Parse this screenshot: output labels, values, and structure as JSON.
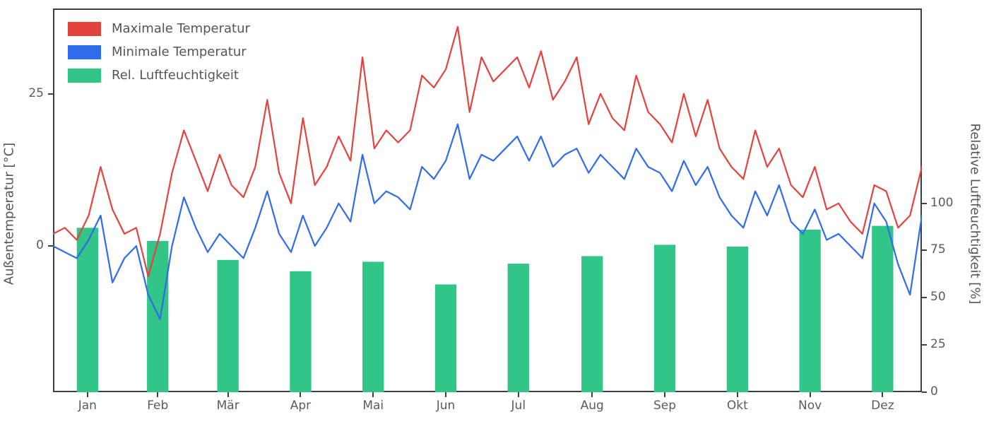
{
  "figure": {
    "background": "#ffffff",
    "spine_color": "#3c4043",
    "text_color": "#565d61"
  },
  "chart_data": {
    "type": "line+bar",
    "title": "",
    "x_tick_labels": [
      "Jan",
      "Feb",
      "Mär",
      "Apr",
      "Mai",
      "Jun",
      "Jul",
      "Aug",
      "Sep",
      "Okt",
      "Nov",
      "Dez"
    ],
    "month_mid_days": [
      15.5,
      45,
      74.5,
      105,
      135.5,
      166,
      196.5,
      227.5,
      258,
      288.5,
      319,
      349.5
    ],
    "x_range_days": [
      1,
      366
    ],
    "temp_axis": {
      "side": "left",
      "label": "Außentemperatur [°C]",
      "ticks": [
        0,
        25
      ],
      "ylim": [
        -24,
        39
      ]
    },
    "humidity_axis": {
      "side": "right",
      "label": "Relative Luftfeuchtigkeit [%]",
      "ticks": [
        0,
        25,
        50,
        75,
        100
      ],
      "ylim": [
        0,
        203
      ]
    },
    "series": [
      {
        "name": "Maximale Temperatur",
        "type": "line",
        "axis": "temp",
        "color": "#e4423d",
        "line_width": 2.2,
        "x_start_day": 1,
        "x_step_days": 5,
        "values": [
          2,
          3,
          1,
          5,
          13,
          6,
          2,
          3,
          -5,
          2,
          12,
          19,
          14,
          9,
          15,
          10,
          8,
          13,
          24,
          12,
          7,
          21,
          10,
          13,
          18,
          14,
          31,
          16,
          19,
          17,
          19,
          28,
          26,
          29,
          36,
          22,
          31,
          27,
          29,
          31,
          26,
          32,
          24,
          27,
          31,
          20,
          25,
          21,
          19,
          28,
          22,
          20,
          17,
          25,
          18,
          24,
          16,
          13,
          11,
          19,
          13,
          16,
          10,
          8,
          13,
          6,
          7,
          4,
          2,
          10,
          9,
          3,
          5,
          13
        ]
      },
      {
        "name": "Minimale Temperatur",
        "type": "line",
        "axis": "temp",
        "color": "#2f6bea",
        "line_width": 2.2,
        "x_start_day": 1,
        "x_step_days": 5,
        "values": [
          0,
          -1,
          -2,
          1,
          5,
          -6,
          -2,
          0,
          -8,
          -12,
          0,
          8,
          3,
          -1,
          2,
          0,
          -2,
          3,
          9,
          2,
          -1,
          5,
          0,
          3,
          7,
          4,
          15,
          7,
          9,
          8,
          6,
          13,
          11,
          14,
          20,
          11,
          15,
          14,
          16,
          18,
          14,
          18,
          13,
          15,
          16,
          12,
          15,
          13,
          11,
          16,
          13,
          12,
          9,
          14,
          10,
          13,
          8,
          5,
          3,
          9,
          5,
          10,
          4,
          2,
          6,
          1,
          2,
          0,
          -2,
          7,
          4,
          -3,
          -8,
          5
        ]
      },
      {
        "name": "Rel. Luftfeuchtigkeit",
        "type": "bar",
        "axis": "humidity",
        "color": "#31c587",
        "bar_width_days": 9,
        "categories": [
          "Jan",
          "Feb",
          "Mär",
          "Apr",
          "Mai",
          "Jun",
          "Jul",
          "Aug",
          "Sep",
          "Okt",
          "Nov",
          "Dez"
        ],
        "values": [
          87,
          80,
          70,
          64,
          69,
          57,
          68,
          72,
          78,
          77,
          86,
          88
        ]
      }
    ],
    "legend_position": "upper-left",
    "grid": false
  }
}
